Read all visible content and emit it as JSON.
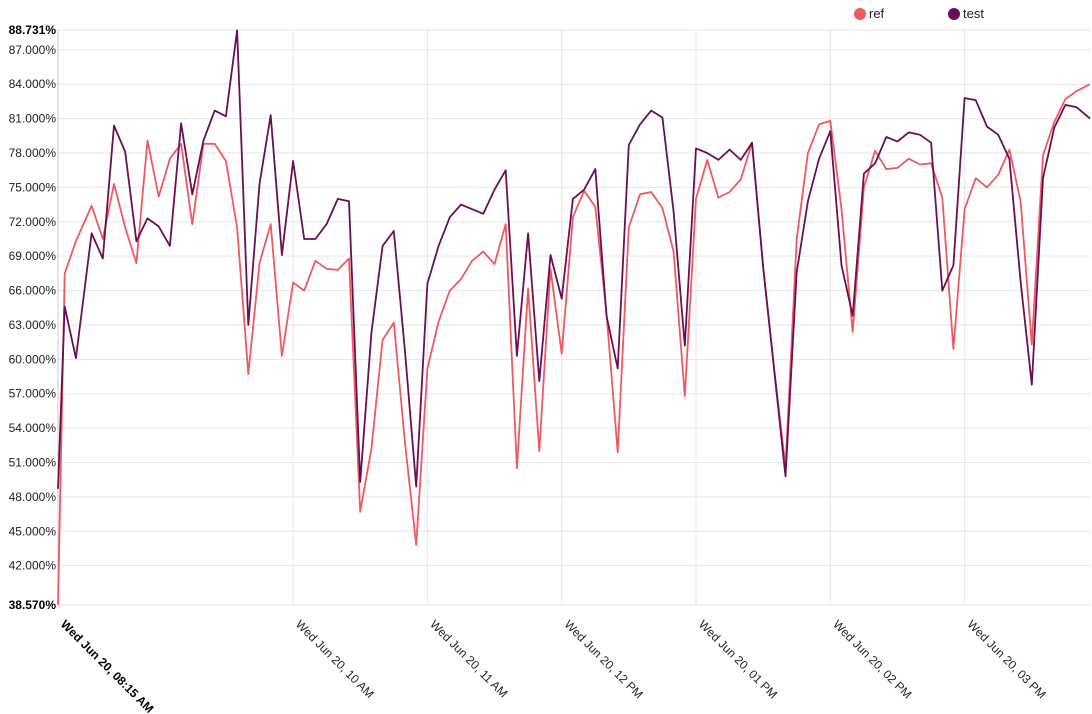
{
  "chart_data": {
    "type": "line",
    "y_axis": {
      "min": 38.57,
      "max": 88.731,
      "tick_labels": [
        "88.731%",
        "87.000%",
        "84.000%",
        "81.000%",
        "78.000%",
        "75.000%",
        "72.000%",
        "69.000%",
        "66.000%",
        "63.000%",
        "60.000%",
        "57.000%",
        "54.000%",
        "51.000%",
        "48.000%",
        "45.000%",
        "42.000%",
        "38.570%"
      ],
      "tick_values": [
        88.731,
        87,
        84,
        81,
        78,
        75,
        72,
        69,
        66,
        63,
        60,
        57,
        54,
        51,
        48,
        45,
        42,
        38.57
      ],
      "bold_ticks": [
        "88.731%",
        "38.570%"
      ]
    },
    "x_axis": {
      "start": "2018-06-20T08:15",
      "end": "2018-06-20T15:56",
      "tick_labels": [
        "Wed Jun 20, 08:15 AM",
        "Wed Jun 20, 10 AM",
        "Wed Jun 20, 11 AM",
        "Wed Jun 20, 12 PM",
        "Wed Jun 20, 01 PM",
        "Wed Jun 20, 02 PM",
        "Wed Jun 20, 03 PM"
      ],
      "tick_times": [
        "2018-06-20T08:15",
        "2018-06-20T10:00",
        "2018-06-20T11:00",
        "2018-06-20T12:00",
        "2018-06-20T13:00",
        "2018-06-20T14:00",
        "2018-06-20T15:00"
      ],
      "bold_ticks": [
        "Wed Jun 20, 08:15 AM"
      ]
    },
    "grid": true,
    "legend_position": "top-right",
    "series": [
      {
        "name": "ref",
        "color": "#ef5a5f",
        "x": [
          "2018-06-20T08:15",
          "2018-06-20T08:18",
          "2018-06-20T08:23",
          "2018-06-20T08:30",
          "2018-06-20T08:35",
          "2018-06-20T08:40",
          "2018-06-20T08:45",
          "2018-06-20T08:50",
          "2018-06-20T08:55",
          "2018-06-20T09:00",
          "2018-06-20T09:05",
          "2018-06-20T09:10",
          "2018-06-20T09:15",
          "2018-06-20T09:20",
          "2018-06-20T09:25",
          "2018-06-20T09:30",
          "2018-06-20T09:35",
          "2018-06-20T09:40",
          "2018-06-20T09:45",
          "2018-06-20T09:50",
          "2018-06-20T09:55",
          "2018-06-20T10:00",
          "2018-06-20T10:05",
          "2018-06-20T10:10",
          "2018-06-20T10:15",
          "2018-06-20T10:20",
          "2018-06-20T10:25",
          "2018-06-20T10:30",
          "2018-06-20T10:35",
          "2018-06-20T10:40",
          "2018-06-20T10:45",
          "2018-06-20T10:50",
          "2018-06-20T10:55",
          "2018-06-20T11:00",
          "2018-06-20T11:05",
          "2018-06-20T11:10",
          "2018-06-20T11:15",
          "2018-06-20T11:20",
          "2018-06-20T11:25",
          "2018-06-20T11:30",
          "2018-06-20T11:35",
          "2018-06-20T11:40",
          "2018-06-20T11:45",
          "2018-06-20T11:50",
          "2018-06-20T11:55",
          "2018-06-20T12:00",
          "2018-06-20T12:05",
          "2018-06-20T12:10",
          "2018-06-20T12:15",
          "2018-06-20T12:20",
          "2018-06-20T12:25",
          "2018-06-20T12:30",
          "2018-06-20T12:35",
          "2018-06-20T12:40",
          "2018-06-20T12:45",
          "2018-06-20T12:50",
          "2018-06-20T12:55",
          "2018-06-20T13:00",
          "2018-06-20T13:05",
          "2018-06-20T13:10",
          "2018-06-20T13:15",
          "2018-06-20T13:20",
          "2018-06-20T13:25",
          "2018-06-20T13:30",
          "2018-06-20T13:35",
          "2018-06-20T13:40",
          "2018-06-20T13:45",
          "2018-06-20T13:50",
          "2018-06-20T13:55",
          "2018-06-20T14:00",
          "2018-06-20T14:05",
          "2018-06-20T14:10",
          "2018-06-20T14:15",
          "2018-06-20T14:20",
          "2018-06-20T14:25",
          "2018-06-20T14:30",
          "2018-06-20T14:35",
          "2018-06-20T14:40",
          "2018-06-20T14:45",
          "2018-06-20T14:50",
          "2018-06-20T14:55",
          "2018-06-20T15:00",
          "2018-06-20T15:05",
          "2018-06-20T15:10",
          "2018-06-20T15:15",
          "2018-06-20T15:20",
          "2018-06-20T15:25",
          "2018-06-20T15:30",
          "2018-06-20T15:35",
          "2018-06-20T15:40",
          "2018-06-20T15:45",
          "2018-06-20T15:50",
          "2018-06-20T15:56"
        ],
        "y": [
          38.6,
          67.5,
          70.3,
          73.4,
          70.5,
          75.3,
          71.5,
          68.4,
          79.1,
          74.2,
          77.5,
          78.8,
          71.8,
          78.8,
          78.8,
          77.3,
          71.5,
          58.7,
          68.4,
          71.8,
          60.3,
          66.7,
          66.0,
          68.6,
          67.9,
          67.8,
          68.8,
          46.7,
          52.2,
          61.7,
          63.2,
          52.7,
          43.8,
          59.2,
          63.3,
          66.0,
          67.0,
          68.6,
          69.4,
          68.3,
          71.8,
          50.5,
          66.2,
          52.0,
          67.9,
          60.5,
          72.4,
          74.7,
          73.3,
          64.0,
          51.9,
          71.5,
          74.4,
          74.6,
          73.2,
          69.4,
          56.8,
          74.0,
          77.4,
          74.1,
          74.6,
          75.7,
          78.9,
          68.0,
          59.0,
          50.6,
          70.5,
          78.0,
          80.5,
          80.8,
          73.1,
          62.4,
          75.0,
          78.2,
          76.6,
          76.7,
          77.5,
          77.0,
          77.1,
          74.1,
          60.9,
          73.1,
          75.8,
          75.0,
          76.1,
          78.3,
          73.8,
          61.3,
          77.8,
          80.7,
          82.7,
          83.4,
          84.0
        ]
      },
      {
        "name": "test",
        "color": "#6b0f55",
        "x": [
          "2018-06-20T08:15",
          "2018-06-20T08:18",
          "2018-06-20T08:23",
          "2018-06-20T08:30",
          "2018-06-20T08:35",
          "2018-06-20T08:40",
          "2018-06-20T08:45",
          "2018-06-20T08:50",
          "2018-06-20T08:55",
          "2018-06-20T09:00",
          "2018-06-20T09:05",
          "2018-06-20T09:10",
          "2018-06-20T09:15",
          "2018-06-20T09:20",
          "2018-06-20T09:25",
          "2018-06-20T09:30",
          "2018-06-20T09:35",
          "2018-06-20T09:40",
          "2018-06-20T09:45",
          "2018-06-20T09:50",
          "2018-06-20T09:55",
          "2018-06-20T10:00",
          "2018-06-20T10:05",
          "2018-06-20T10:10",
          "2018-06-20T10:15",
          "2018-06-20T10:20",
          "2018-06-20T10:25",
          "2018-06-20T10:30",
          "2018-06-20T10:35",
          "2018-06-20T10:40",
          "2018-06-20T10:45",
          "2018-06-20T10:50",
          "2018-06-20T10:55",
          "2018-06-20T11:00",
          "2018-06-20T11:05",
          "2018-06-20T11:10",
          "2018-06-20T11:15",
          "2018-06-20T11:20",
          "2018-06-20T11:25",
          "2018-06-20T11:30",
          "2018-06-20T11:35",
          "2018-06-20T11:40",
          "2018-06-20T11:45",
          "2018-06-20T11:50",
          "2018-06-20T11:55",
          "2018-06-20T12:00",
          "2018-06-20T12:05",
          "2018-06-20T12:10",
          "2018-06-20T12:15",
          "2018-06-20T12:20",
          "2018-06-20T12:25",
          "2018-06-20T12:30",
          "2018-06-20T12:35",
          "2018-06-20T12:40",
          "2018-06-20T12:45",
          "2018-06-20T12:50",
          "2018-06-20T12:55",
          "2018-06-20T13:00",
          "2018-06-20T13:05",
          "2018-06-20T13:10",
          "2018-06-20T13:15",
          "2018-06-20T13:20",
          "2018-06-20T13:25",
          "2018-06-20T13:30",
          "2018-06-20T13:35",
          "2018-06-20T13:40",
          "2018-06-20T13:45",
          "2018-06-20T13:50",
          "2018-06-20T13:55",
          "2018-06-20T14:00",
          "2018-06-20T14:05",
          "2018-06-20T14:10",
          "2018-06-20T14:15",
          "2018-06-20T14:20",
          "2018-06-20T14:25",
          "2018-06-20T14:30",
          "2018-06-20T14:35",
          "2018-06-20T14:40",
          "2018-06-20T14:45",
          "2018-06-20T14:50",
          "2018-06-20T14:55",
          "2018-06-20T15:00",
          "2018-06-20T15:05",
          "2018-06-20T15:10",
          "2018-06-20T15:15",
          "2018-06-20T15:20",
          "2018-06-20T15:25",
          "2018-06-20T15:30",
          "2018-06-20T15:35",
          "2018-06-20T15:40",
          "2018-06-20T15:45",
          "2018-06-20T15:50",
          "2018-06-20T15:56"
        ],
        "y": [
          48.7,
          64.6,
          60.1,
          71.0,
          68.8,
          80.4,
          78.1,
          70.3,
          72.3,
          71.6,
          69.9,
          80.6,
          74.4,
          79.1,
          81.7,
          81.2,
          88.7,
          63.0,
          75.3,
          81.3,
          69.1,
          77.3,
          70.5,
          70.5,
          71.8,
          74.0,
          73.8,
          49.3,
          62.3,
          69.9,
          71.2,
          60.7,
          48.9,
          66.6,
          69.9,
          72.4,
          73.5,
          73.1,
          72.7,
          74.8,
          76.5,
          60.3,
          71.0,
          58.1,
          69.1,
          65.3,
          74.0,
          74.8,
          76.6,
          63.8,
          59.2,
          78.7,
          80.5,
          81.7,
          81.1,
          72.9,
          61.2,
          78.4,
          78.0,
          77.4,
          78.3,
          77.4,
          78.9,
          68.0,
          58.9,
          49.8,
          67.6,
          73.8,
          77.5,
          79.9,
          68.2,
          63.8,
          76.2,
          77.1,
          79.4,
          79.0,
          79.8,
          79.6,
          78.9,
          66.0,
          68.2,
          82.8,
          82.6,
          80.3,
          79.6,
          77.5,
          66.8,
          57.8,
          75.8,
          80.2,
          82.2,
          82.0,
          81.0
        ]
      }
    ]
  }
}
